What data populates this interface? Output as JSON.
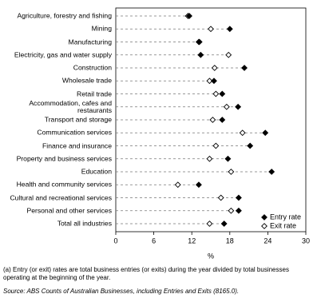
{
  "chart_data": {
    "type": "dot",
    "xlabel": "%",
    "categories": [
      "Agriculture, forestry and fishing",
      "Mining",
      "Manufacturing",
      "Electricity, gas and water supply",
      "Construction",
      "Wholesale trade",
      "Retail trade",
      "Accommodation, cafes and restaurants",
      "Transport and storage",
      "Communication services",
      "Finance and insurance",
      "Property and business services",
      "Education",
      "Health and community services",
      "Cultural and recreational services",
      "Personal and other services",
      "Total all industries"
    ],
    "series": [
      {
        "name": "Entry rate",
        "color": "#000000",
        "marker": "filled",
        "values": [
          11.6,
          18.0,
          13.1,
          13.4,
          20.3,
          15.5,
          16.8,
          19.3,
          16.8,
          23.6,
          21.2,
          17.7,
          24.6,
          13.1,
          19.4,
          19.4,
          17.1
        ]
      },
      {
        "name": "Exit rate",
        "color": "#000000",
        "marker": "open",
        "values": [
          11.4,
          15.0,
          13.2,
          17.8,
          15.6,
          14.8,
          15.8,
          17.5,
          15.3,
          20.0,
          15.8,
          14.8,
          18.2,
          9.8,
          16.6,
          18.2,
          14.8
        ]
      }
    ],
    "xlim": [
      0,
      30
    ],
    "xticks": [
      0,
      6,
      12,
      18,
      24,
      30
    ],
    "legend": "bottom-right",
    "footnote": "(a) Entry (or exit) rates are total business entries (or exits) during the year divided by total businesses operating at the beginning of the year.",
    "source": "Source: ABS Counts of Australian Businesses, including Entries and Exits (8165.0)."
  }
}
